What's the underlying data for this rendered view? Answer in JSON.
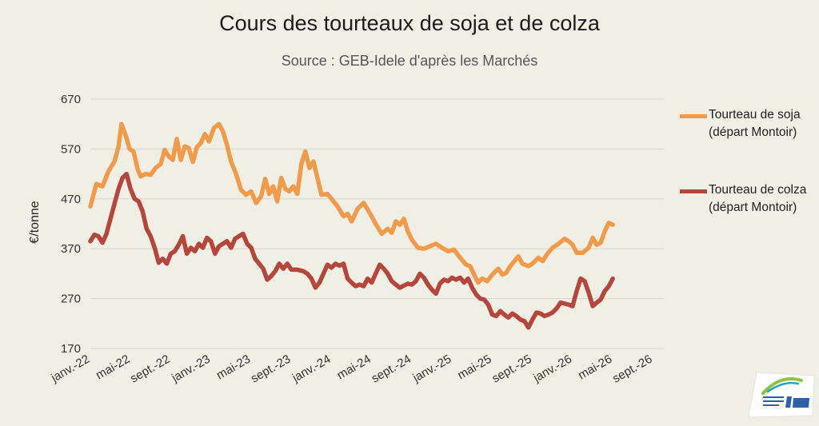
{
  "chart_data": {
    "type": "line",
    "title": "Cours des tourteaux de soja et de colza",
    "subtitle": "Source : GEB-Idele d'après les Marchés",
    "ylabel": "€/tonne",
    "ylim": [
      170,
      670
    ],
    "yticks": [
      170,
      270,
      370,
      470,
      570,
      670
    ],
    "x_tick_labels": [
      "janv.-22",
      "mai-22",
      "sept.-22",
      "janv.-23",
      "mai-23",
      "sept.-23",
      "janv.-24",
      "mai-24",
      "sept.-24",
      "janv.-25",
      "mai-25",
      "sept.-25",
      "janv.-26",
      "mai-26",
      "sept.-26"
    ],
    "x_range_months": [
      0,
      57
    ],
    "grid": "horizontal",
    "legend_position": "right",
    "series": [
      {
        "name": "Tourteau de soja (départ Montoir)",
        "color": "#f2994a",
        "points": [
          [
            0,
            455
          ],
          [
            0.6,
            500
          ],
          [
            1.2,
            495
          ],
          [
            1.8,
            525
          ],
          [
            2.4,
            545
          ],
          [
            2.8,
            575
          ],
          [
            3.1,
            620
          ],
          [
            3.5,
            598
          ],
          [
            3.9,
            570
          ],
          [
            4.3,
            565
          ],
          [
            4.7,
            530
          ],
          [
            5.0,
            515
          ],
          [
            5.5,
            520
          ],
          [
            6.0,
            518
          ],
          [
            6.5,
            532
          ],
          [
            7.0,
            540
          ],
          [
            7.4,
            568
          ],
          [
            7.8,
            555
          ],
          [
            8.2,
            548
          ],
          [
            8.6,
            590
          ],
          [
            9.0,
            548
          ],
          [
            9.4,
            575
          ],
          [
            9.8,
            572
          ],
          [
            10.2,
            544
          ],
          [
            10.6,
            574
          ],
          [
            11.0,
            582
          ],
          [
            11.4,
            600
          ],
          [
            11.8,
            585
          ],
          [
            12.3,
            612
          ],
          [
            12.8,
            620
          ],
          [
            13.2,
            605
          ],
          [
            13.6,
            578
          ],
          [
            14.0,
            545
          ],
          [
            14.5,
            520
          ],
          [
            15.0,
            488
          ],
          [
            15.5,
            478
          ],
          [
            16.0,
            485
          ],
          [
            16.5,
            462
          ],
          [
            17.0,
            475
          ],
          [
            17.4,
            510
          ],
          [
            17.8,
            480
          ],
          [
            18.2,
            495
          ],
          [
            18.6,
            465
          ],
          [
            19.0,
            512
          ],
          [
            19.4,
            490
          ],
          [
            19.8,
            485
          ],
          [
            20.2,
            495
          ],
          [
            20.6,
            480
          ],
          [
            21.0,
            540
          ],
          [
            21.4,
            565
          ],
          [
            21.8,
            532
          ],
          [
            22.2,
            545
          ],
          [
            22.6,
            512
          ],
          [
            23.0,
            478
          ],
          [
            23.6,
            480
          ],
          [
            24.0,
            470
          ],
          [
            24.6,
            455
          ],
          [
            25.2,
            435
          ],
          [
            25.6,
            440
          ],
          [
            26.0,
            425
          ],
          [
            26.6,
            450
          ],
          [
            27.2,
            462
          ],
          [
            27.8,
            442
          ],
          [
            28.4,
            420
          ],
          [
            29.0,
            400
          ],
          [
            29.6,
            410
          ],
          [
            30.0,
            402
          ],
          [
            30.4,
            425
          ],
          [
            30.8,
            418
          ],
          [
            31.2,
            430
          ],
          [
            31.6,
            405
          ],
          [
            32.0,
            388
          ],
          [
            32.6,
            372
          ],
          [
            33.2,
            370
          ],
          [
            33.8,
            375
          ],
          [
            34.4,
            380
          ],
          [
            35.0,
            372
          ],
          [
            35.6,
            365
          ],
          [
            36.2,
            368
          ],
          [
            36.8,
            352
          ],
          [
            37.4,
            338
          ],
          [
            37.8,
            335
          ],
          [
            38.2,
            318
          ],
          [
            38.6,
            302
          ],
          [
            39.0,
            310
          ],
          [
            39.5,
            305
          ],
          [
            40.0,
            318
          ],
          [
            40.6,
            330
          ],
          [
            41.0,
            318
          ],
          [
            41.4,
            322
          ],
          [
            41.8,
            335
          ],
          [
            42.2,
            345
          ],
          [
            42.6,
            355
          ],
          [
            43.0,
            340
          ],
          [
            43.6,
            335
          ],
          [
            44.0,
            340
          ],
          [
            44.6,
            352
          ],
          [
            45.0,
            345
          ],
          [
            45.5,
            360
          ],
          [
            46.0,
            372
          ],
          [
            46.6,
            380
          ],
          [
            47.2,
            390
          ],
          [
            47.6,
            385
          ],
          [
            48.0,
            378
          ],
          [
            48.4,
            362
          ],
          [
            49.0,
            362
          ],
          [
            49.6,
            372
          ],
          [
            50.0,
            392
          ],
          [
            50.4,
            378
          ],
          [
            50.8,
            382
          ],
          [
            51.2,
            405
          ],
          [
            51.6,
            422
          ],
          [
            52.0,
            418
          ]
        ]
      },
      {
        "name": "Tourteau de colza (départ Montoir)",
        "color": "#b6453c",
        "points": [
          [
            0,
            385
          ],
          [
            0.4,
            398
          ],
          [
            0.8,
            395
          ],
          [
            1.2,
            382
          ],
          [
            1.6,
            400
          ],
          [
            2.0,
            430
          ],
          [
            2.4,
            460
          ],
          [
            2.8,
            490
          ],
          [
            3.2,
            512
          ],
          [
            3.6,
            520
          ],
          [
            4.0,
            490
          ],
          [
            4.4,
            470
          ],
          [
            4.8,
            465
          ],
          [
            5.2,
            445
          ],
          [
            5.6,
            410
          ],
          [
            6.0,
            395
          ],
          [
            6.4,
            372
          ],
          [
            6.8,
            342
          ],
          [
            7.2,
            350
          ],
          [
            7.6,
            340
          ],
          [
            8.0,
            360
          ],
          [
            8.4,
            365
          ],
          [
            8.8,
            378
          ],
          [
            9.2,
            395
          ],
          [
            9.6,
            360
          ],
          [
            10.0,
            372
          ],
          [
            10.4,
            365
          ],
          [
            10.8,
            380
          ],
          [
            11.2,
            372
          ],
          [
            11.6,
            392
          ],
          [
            12.0,
            385
          ],
          [
            12.4,
            360
          ],
          [
            12.8,
            375
          ],
          [
            13.2,
            380
          ],
          [
            13.6,
            385
          ],
          [
            14.0,
            372
          ],
          [
            14.4,
            390
          ],
          [
            14.8,
            395
          ],
          [
            15.2,
            400
          ],
          [
            15.6,
            380
          ],
          [
            16.0,
            372
          ],
          [
            16.4,
            350
          ],
          [
            16.8,
            340
          ],
          [
            17.2,
            330
          ],
          [
            17.6,
            308
          ],
          [
            18.0,
            315
          ],
          [
            18.4,
            325
          ],
          [
            18.8,
            340
          ],
          [
            19.2,
            330
          ],
          [
            19.6,
            340
          ],
          [
            20.0,
            328
          ],
          [
            20.6,
            328
          ],
          [
            21.2,
            325
          ],
          [
            21.6,
            320
          ],
          [
            22.0,
            310
          ],
          [
            22.4,
            292
          ],
          [
            22.8,
            302
          ],
          [
            23.2,
            320
          ],
          [
            23.6,
            338
          ],
          [
            24.0,
            332
          ],
          [
            24.4,
            340
          ],
          [
            24.8,
            336
          ],
          [
            25.2,
            340
          ],
          [
            25.6,
            310
          ],
          [
            26.0,
            302
          ],
          [
            26.4,
            295
          ],
          [
            26.8,
            298
          ],
          [
            27.2,
            295
          ],
          [
            27.6,
            310
          ],
          [
            28.0,
            302
          ],
          [
            28.4,
            320
          ],
          [
            28.8,
            338
          ],
          [
            29.2,
            330
          ],
          [
            29.6,
            320
          ],
          [
            30.0,
            305
          ],
          [
            30.4,
            298
          ],
          [
            30.8,
            292
          ],
          [
            31.2,
            296
          ],
          [
            31.6,
            300
          ],
          [
            32.0,
            298
          ],
          [
            32.4,
            305
          ],
          [
            32.8,
            320
          ],
          [
            33.2,
            312
          ],
          [
            33.6,
            298
          ],
          [
            34.0,
            288
          ],
          [
            34.4,
            280
          ],
          [
            34.8,
            300
          ],
          [
            35.2,
            308
          ],
          [
            35.6,
            305
          ],
          [
            36.0,
            312
          ],
          [
            36.4,
            308
          ],
          [
            36.8,
            312
          ],
          [
            37.2,
            302
          ],
          [
            37.6,
            310
          ],
          [
            38.0,
            292
          ],
          [
            38.4,
            278
          ],
          [
            38.8,
            270
          ],
          [
            39.2,
            268
          ],
          [
            39.6,
            258
          ],
          [
            40.0,
            238
          ],
          [
            40.4,
            235
          ],
          [
            40.8,
            245
          ],
          [
            41.2,
            238
          ],
          [
            41.6,
            232
          ],
          [
            42.0,
            240
          ],
          [
            42.4,
            235
          ],
          [
            42.8,
            228
          ],
          [
            43.2,
            225
          ],
          [
            43.6,
            212
          ],
          [
            44.0,
            228
          ],
          [
            44.4,
            242
          ],
          [
            44.8,
            240
          ],
          [
            45.2,
            235
          ],
          [
            45.6,
            238
          ],
          [
            46.0,
            242
          ],
          [
            46.4,
            250
          ],
          [
            46.8,
            262
          ],
          [
            47.2,
            260
          ],
          [
            47.6,
            258
          ],
          [
            48.0,
            255
          ],
          [
            48.4,
            285
          ],
          [
            48.8,
            310
          ],
          [
            49.2,
            305
          ],
          [
            49.6,
            282
          ],
          [
            50.0,
            255
          ],
          [
            50.4,
            262
          ],
          [
            50.8,
            268
          ],
          [
            51.2,
            285
          ],
          [
            51.6,
            295
          ],
          [
            52.0,
            310
          ]
        ]
      }
    ]
  }
}
